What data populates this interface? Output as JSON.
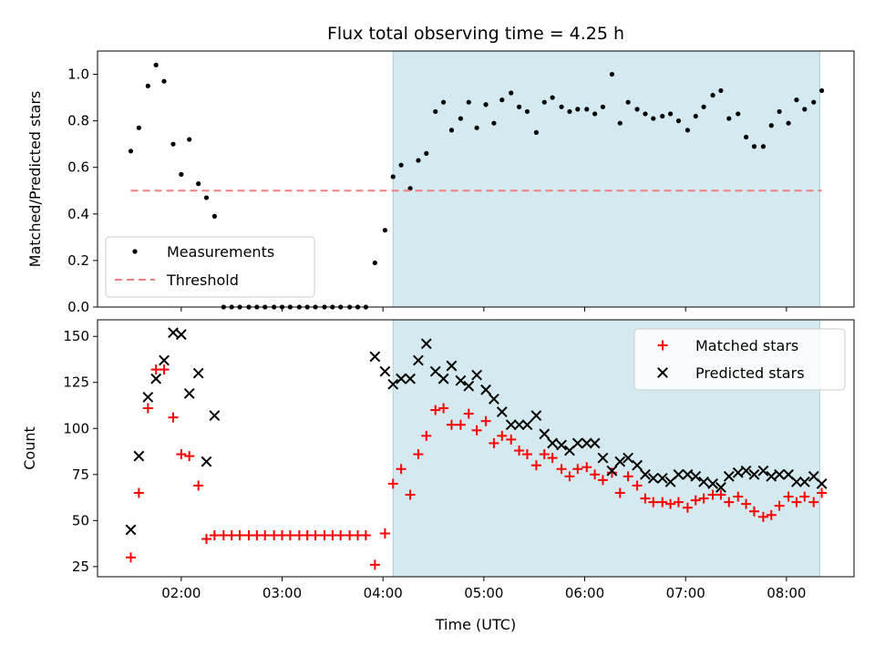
{
  "chart_data": [
    {
      "type": "scatter",
      "title": "Flux total observing time = 4.25 h",
      "xlabel": "",
      "ylabel": "Matched/Predicted stars",
      "xlim": [
        1.17,
        8.67
      ],
      "ylim": [
        0,
        1.1
      ],
      "xticks": [
        2,
        3,
        4,
        5,
        6,
        7,
        8
      ],
      "xticklabels_shown": false,
      "yticks": [
        0.0,
        0.2,
        0.4,
        0.6,
        0.8,
        1.0
      ],
      "ytick_labels": [
        "0.0",
        "0.2",
        "0.4",
        "0.6",
        "0.8",
        "1.0"
      ],
      "shaded_span": {
        "x": [
          4.1,
          8.33
        ],
        "color": "#d4eaf0"
      },
      "legend": {
        "placement": "lower-left",
        "entries": [
          "Measurements",
          "Threshold"
        ]
      },
      "series": [
        {
          "name": "Measurements",
          "marker": "dot",
          "color": "#000000",
          "x": [
            1.5,
            1.58,
            1.67,
            1.75,
            1.83,
            1.92,
            2.0,
            2.08,
            2.17,
            2.25,
            2.33,
            2.42,
            2.5,
            2.58,
            2.67,
            2.75,
            2.83,
            2.92,
            3.0,
            3.08,
            3.17,
            3.25,
            3.33,
            3.42,
            3.5,
            3.58,
            3.67,
            3.75,
            3.83,
            3.92,
            4.02,
            4.1,
            4.18,
            4.27,
            4.35,
            4.43,
            4.52,
            4.6,
            4.68,
            4.77,
            4.85,
            4.93,
            5.02,
            5.1,
            5.18,
            5.27,
            5.35,
            5.43,
            5.52,
            5.6,
            5.68,
            5.77,
            5.85,
            5.93,
            6.02,
            6.1,
            6.18,
            6.27,
            6.35,
            6.43,
            6.52,
            6.6,
            6.68,
            6.77,
            6.85,
            6.93,
            7.02,
            7.1,
            7.18,
            7.27,
            7.35,
            7.43,
            7.52,
            7.6,
            7.68,
            7.77,
            7.85,
            7.93,
            8.02,
            8.1,
            8.18,
            8.27,
            8.35
          ],
          "y": [
            0.67,
            0.77,
            0.95,
            1.04,
            0.97,
            0.7,
            0.57,
            0.72,
            0.53,
            0.47,
            0.39,
            0,
            0,
            0,
            0,
            0,
            0,
            0,
            0,
            0,
            0,
            0,
            0,
            0,
            0,
            0,
            0,
            0,
            0,
            0.19,
            0.33,
            0.56,
            0.61,
            0.51,
            0.63,
            0.66,
            0.84,
            0.88,
            0.76,
            0.81,
            0.88,
            0.77,
            0.87,
            0.79,
            0.89,
            0.92,
            0.86,
            0.84,
            0.75,
            0.88,
            0.9,
            0.86,
            0.84,
            0.85,
            0.85,
            0.83,
            0.86,
            1.0,
            0.79,
            0.88,
            0.85,
            0.83,
            0.81,
            0.82,
            0.83,
            0.8,
            0.76,
            0.82,
            0.86,
            0.91,
            0.93,
            0.81,
            0.83,
            0.73,
            0.69,
            0.69,
            0.78,
            0.84,
            0.79,
            0.89,
            0.85,
            0.88,
            0.93
          ]
        },
        {
          "name": "Threshold",
          "style": "dashed-line",
          "color": "#f08080",
          "x": [
            1.5,
            8.35
          ],
          "y": [
            0.5,
            0.5
          ]
        }
      ]
    },
    {
      "type": "scatter",
      "title": "",
      "xlabel": "Time (UTC)",
      "ylabel": "Count",
      "xlim": [
        1.17,
        8.67
      ],
      "ylim": [
        19.5,
        159
      ],
      "xticks": [
        2,
        3,
        4,
        5,
        6,
        7,
        8
      ],
      "xtick_labels": [
        "02:00",
        "03:00",
        "04:00",
        "05:00",
        "06:00",
        "07:00",
        "08:00"
      ],
      "yticks": [
        25,
        50,
        75,
        100,
        125,
        150
      ],
      "ytick_labels": [
        "25",
        "50",
        "75",
        "100",
        "125",
        "150"
      ],
      "shaded_span": {
        "x": [
          4.1,
          8.33
        ],
        "color": "#d4eaf0"
      },
      "legend": {
        "placement": "upper-right",
        "entries": [
          "Matched stars",
          "Predicted stars"
        ]
      },
      "series": [
        {
          "name": "Matched stars",
          "marker": "plus",
          "color": "#ff0000",
          "x": [
            1.5,
            1.58,
            1.67,
            1.75,
            1.83,
            1.92,
            2.0,
            2.08,
            2.17,
            2.25,
            2.33,
            2.42,
            2.5,
            2.58,
            2.67,
            2.75,
            2.83,
            2.92,
            3.0,
            3.08,
            3.17,
            3.25,
            3.33,
            3.42,
            3.5,
            3.58,
            3.67,
            3.75,
            3.83,
            3.92,
            4.02,
            4.1,
            4.18,
            4.27,
            4.35,
            4.43,
            4.52,
            4.6,
            4.68,
            4.77,
            4.85,
            4.93,
            5.02,
            5.1,
            5.18,
            5.27,
            5.35,
            5.43,
            5.52,
            5.6,
            5.68,
            5.77,
            5.85,
            5.93,
            6.02,
            6.1,
            6.18,
            6.27,
            6.35,
            6.43,
            6.52,
            6.6,
            6.68,
            6.77,
            6.85,
            6.93,
            7.02,
            7.1,
            7.18,
            7.27,
            7.35,
            7.43,
            7.52,
            7.6,
            7.68,
            7.77,
            7.85,
            7.93,
            8.02,
            8.1,
            8.18,
            8.27,
            8.35
          ],
          "y": [
            30,
            65,
            111,
            132,
            132,
            106,
            86,
            85,
            69,
            40,
            42,
            42,
            42,
            42,
            42,
            42,
            42,
            42,
            42,
            42,
            42,
            42,
            42,
            42,
            42,
            42,
            42,
            42,
            42,
            26,
            43,
            70,
            78,
            64,
            86,
            96,
            110,
            111,
            102,
            102,
            108,
            99,
            104,
            92,
            96,
            94,
            88,
            86,
            80,
            86,
            84,
            78,
            74,
            78,
            79,
            75,
            72,
            76,
            65,
            74,
            69,
            62,
            60,
            60,
            59,
            60,
            57,
            61,
            62,
            64,
            64,
            60,
            63,
            59,
            55,
            52,
            53,
            58,
            63,
            60,
            63,
            60,
            65
          ]
        },
        {
          "name": "Predicted stars",
          "marker": "x",
          "color": "#000000",
          "x": [
            1.5,
            1.58,
            1.67,
            1.75,
            1.83,
            1.92,
            2.0,
            2.08,
            2.17,
            2.25,
            2.33,
            3.92,
            4.02,
            4.1,
            4.18,
            4.27,
            4.35,
            4.43,
            4.52,
            4.6,
            4.68,
            4.77,
            4.85,
            4.93,
            5.02,
            5.1,
            5.18,
            5.27,
            5.35,
            5.43,
            5.52,
            5.6,
            5.68,
            5.77,
            5.85,
            5.93,
            6.02,
            6.1,
            6.18,
            6.27,
            6.35,
            6.43,
            6.52,
            6.6,
            6.68,
            6.77,
            6.85,
            6.93,
            7.02,
            7.1,
            7.18,
            7.27,
            7.35,
            7.43,
            7.52,
            7.6,
            7.68,
            7.77,
            7.85,
            7.93,
            8.02,
            8.1,
            8.18,
            8.27,
            8.35
          ],
          "y": [
            45,
            85,
            117,
            127,
            137,
            152,
            151,
            119,
            130,
            82,
            107,
            139,
            131,
            124,
            127,
            127,
            137,
            146,
            131,
            127,
            134,
            126,
            123,
            129,
            121,
            116,
            109,
            102,
            102,
            102,
            107,
            97,
            92,
            91,
            88,
            92,
            92,
            92,
            84,
            77,
            82,
            84,
            80,
            75,
            73,
            73,
            71,
            75,
            75,
            74,
            71,
            70,
            68,
            74,
            76,
            77,
            75,
            77,
            74,
            75,
            75,
            71,
            71,
            74,
            70
          ]
        }
      ]
    }
  ]
}
